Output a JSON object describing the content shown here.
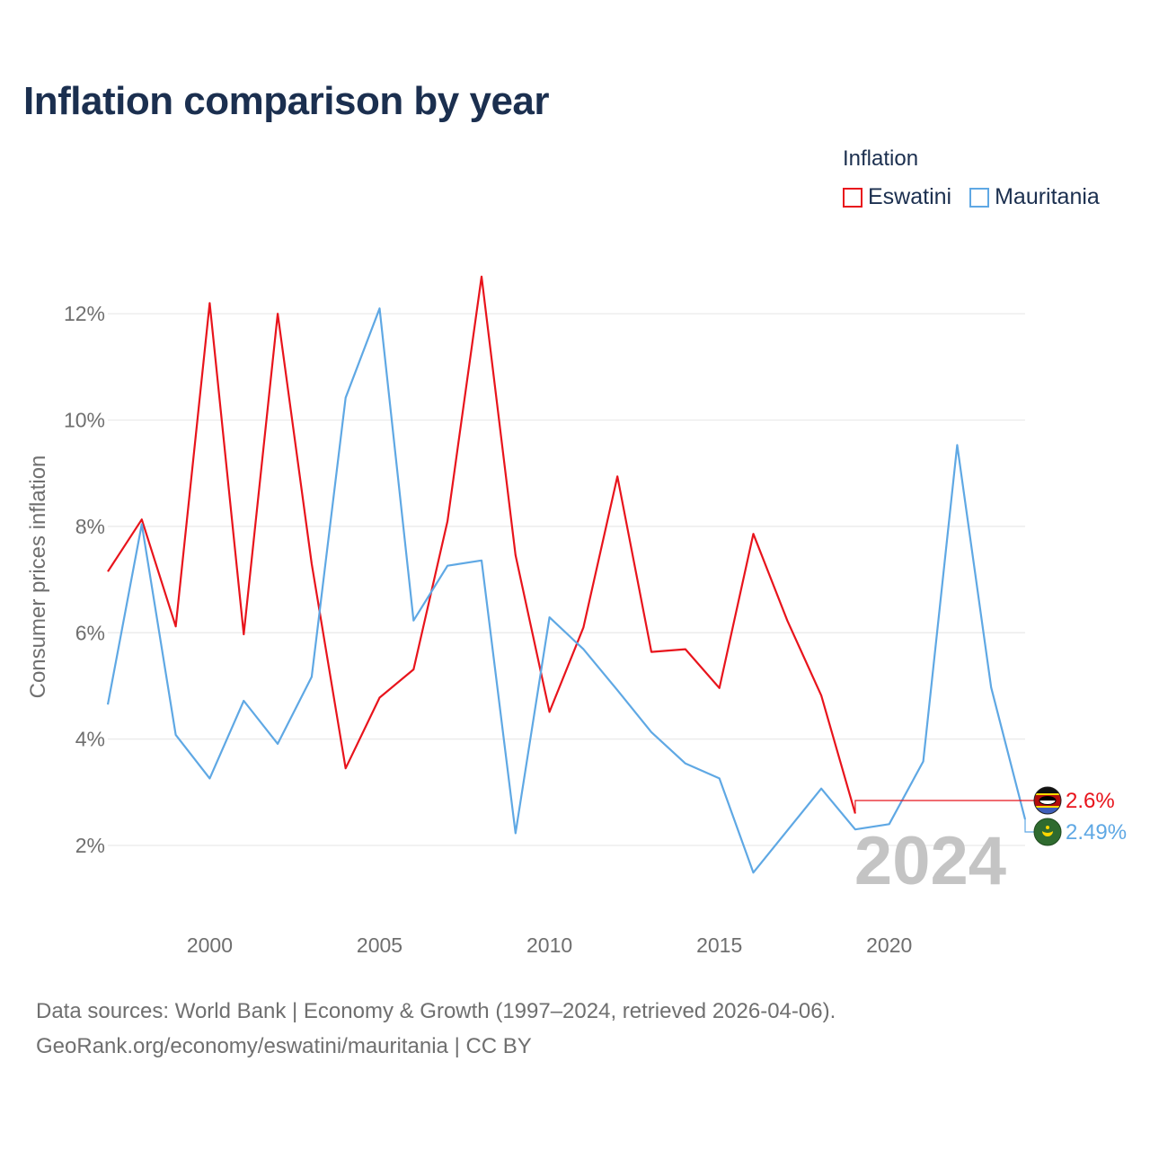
{
  "chart_data": {
    "type": "line",
    "title": "Inflation comparison by year",
    "legend_title": "Inflation",
    "ylabel": "Consumer prices inflation",
    "xlabel": "",
    "xlim": [
      1997,
      2024
    ],
    "ylim": [
      0.8,
      13.0
    ],
    "y_ticks": [
      2,
      4,
      6,
      8,
      10,
      12
    ],
    "y_tick_labels": [
      "2%",
      "4%",
      "6%",
      "8%",
      "10%",
      "12%"
    ],
    "x_ticks": [
      2000,
      2005,
      2010,
      2015,
      2020
    ],
    "x_tick_labels": [
      "2000",
      "2005",
      "2010",
      "2015",
      "2020"
    ],
    "grid": true,
    "legend_position": "top-right",
    "year_label": "2024",
    "series": [
      {
        "name": "Eswatini",
        "color": "#e8141c",
        "end_label": "2.6%",
        "x": [
          1997,
          1998,
          1999,
          2000,
          2001,
          2002,
          2003,
          2004,
          2005,
          2006,
          2007,
          2008,
          2009,
          2010,
          2011,
          2012,
          2013,
          2014,
          2015,
          2016,
          2017,
          2018,
          2019
        ],
        "values": [
          7.15,
          8.13,
          6.12,
          12.2,
          5.97,
          12.0,
          7.3,
          3.45,
          4.78,
          5.31,
          8.1,
          12.7,
          7.46,
          4.51,
          6.1,
          8.94,
          5.64,
          5.69,
          4.96,
          7.86,
          6.23,
          4.82,
          2.6
        ]
      },
      {
        "name": "Mauritania",
        "color": "#5fa8e4",
        "end_label": "2.49%",
        "x": [
          1997,
          1998,
          1999,
          2000,
          2001,
          2002,
          2003,
          2004,
          2005,
          2006,
          2007,
          2008,
          2009,
          2010,
          2011,
          2012,
          2013,
          2014,
          2015,
          2016,
          2017,
          2018,
          2019,
          2020,
          2021,
          2022,
          2023,
          2024
        ],
        "values": [
          4.65,
          8.04,
          4.08,
          3.26,
          4.72,
          3.91,
          5.17,
          10.42,
          12.1,
          6.23,
          7.26,
          7.36,
          2.23,
          6.29,
          5.69,
          4.92,
          4.13,
          3.54,
          3.26,
          1.49,
          2.28,
          3.07,
          2.3,
          2.4,
          3.58,
          9.53,
          4.97,
          2.49
        ]
      }
    ]
  },
  "sources": {
    "line1": "Data sources: World Bank | Economy & Growth (1997–2024, retrieved 2026-04-06).",
    "line2": "GeoRank.org/economy/eswatini/mauritania | CC BY"
  }
}
